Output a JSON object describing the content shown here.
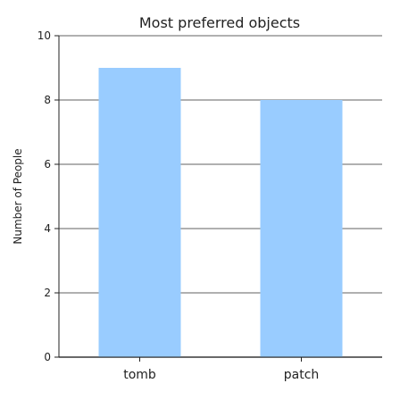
{
  "chart_data": {
    "type": "bar",
    "title": "Most preferred objects",
    "xlabel": "",
    "ylabel": "Number of People",
    "categories": [
      "tomb",
      "patch"
    ],
    "values": [
      9,
      8
    ],
    "ylim": [
      0,
      10
    ],
    "yticks": [
      "0",
      "2",
      "4",
      "6",
      "8",
      "10"
    ],
    "grid": true,
    "bar_color": "#99ccff"
  }
}
